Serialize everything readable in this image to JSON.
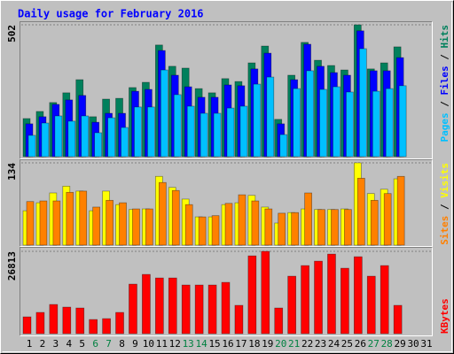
{
  "chart_data": {
    "type": "bar",
    "title": "Daily usage for February 2016",
    "categories": [
      "1",
      "2",
      "3",
      "4",
      "5",
      "6",
      "7",
      "8",
      "9",
      "10",
      "11",
      "12",
      "13",
      "14",
      "15",
      "16",
      "17",
      "18",
      "19",
      "20",
      "21",
      "22",
      "23",
      "24",
      "25",
      "26",
      "27",
      "28",
      "29",
      "30",
      "31"
    ],
    "category_colors": [
      "#000000",
      "#000000",
      "#000000",
      "#000000",
      "#000000",
      "#008040",
      "#008040",
      "#000000",
      "#000000",
      "#000000",
      "#000000",
      "#000000",
      "#008040",
      "#008040",
      "#000000",
      "#000000",
      "#000000",
      "#000000",
      "#000000",
      "#008040",
      "#008040",
      "#000000",
      "#000000",
      "#000000",
      "#000000",
      "#000000",
      "#008040",
      "#008040",
      "#000000",
      "#000000",
      "#000000"
    ],
    "legend_separator": " / ",
    "panels": [
      {
        "ylim": [
          0,
          502
        ],
        "yticks": [
          502
        ],
        "series": [
          {
            "name": "Hits",
            "color": "#00805c",
            "values": [
              145,
              172,
              206,
              243,
              293,
              152,
              219,
              222,
              263,
              283,
              425,
              344,
              337,
              259,
              243,
              297,
              286,
              357,
              421,
              142,
              310,
              435,
              367,
              347,
              330,
              502,
              334,
              357,
              418,
              null,
              null
            ]
          },
          {
            "name": "Files",
            "color": "#0000ff",
            "values": [
              125,
              152,
              199,
              216,
              233,
              131,
              165,
              165,
              249,
              256,
              404,
              310,
              266,
              226,
              226,
              273,
              270,
              334,
              394,
              125,
              293,
              428,
              344,
              320,
              310,
              479,
              327,
              327,
              377,
              null,
              null
            ]
          },
          {
            "name": "Pages",
            "color": "#00c0ff",
            "values": [
              81,
              128,
              155,
              135,
              155,
              91,
              148,
              111,
              189,
              189,
              330,
              236,
              192,
              165,
              165,
              185,
              192,
              276,
              303,
              84,
              259,
              327,
              256,
              266,
              246,
              411,
              249,
              259,
              270,
              null,
              null
            ]
          }
        ]
      },
      {
        "ylim": [
          0,
          134
        ],
        "yticks": [
          134
        ],
        "series": [
          {
            "name": "Visits",
            "color": "#ffff00",
            "values": [
              56,
              69,
              85,
              96,
              88,
              56,
              88,
              66,
              58,
              59,
              112,
              94,
              75,
              46,
              46,
              66,
              69,
              81,
              62,
              36,
              53,
              59,
              58,
              58,
              59,
              134,
              84,
              91,
              108,
              null,
              null
            ]
          },
          {
            "name": "Sites",
            "color": "#ff8000",
            "values": [
              71,
              72,
              72,
              86,
              88,
              62,
              73,
              69,
              59,
              59,
              102,
              89,
              66,
              46,
              48,
              68,
              82,
              72,
              59,
              52,
              53,
              85,
              58,
              58,
              58,
              109,
              73,
              84,
              112,
              null,
              null
            ]
          }
        ]
      },
      {
        "ylim": [
          0,
          26813
        ],
        "yticks": [
          26813
        ],
        "series": [
          {
            "name": "KBytes",
            "color": "#ff0000",
            "values": [
              5472,
              6912,
              9504,
              8640,
              8352,
              4608,
              4896,
              6912,
              16128,
              19296,
              18144,
              18144,
              15840,
              15840,
              15840,
              16704,
              9216,
              25344,
              26813,
              8352,
              18720,
              22176,
              23616,
              25920,
              21312,
              25056,
              18720,
              22176,
              9216,
              null,
              null
            ]
          }
        ]
      }
    ]
  }
}
